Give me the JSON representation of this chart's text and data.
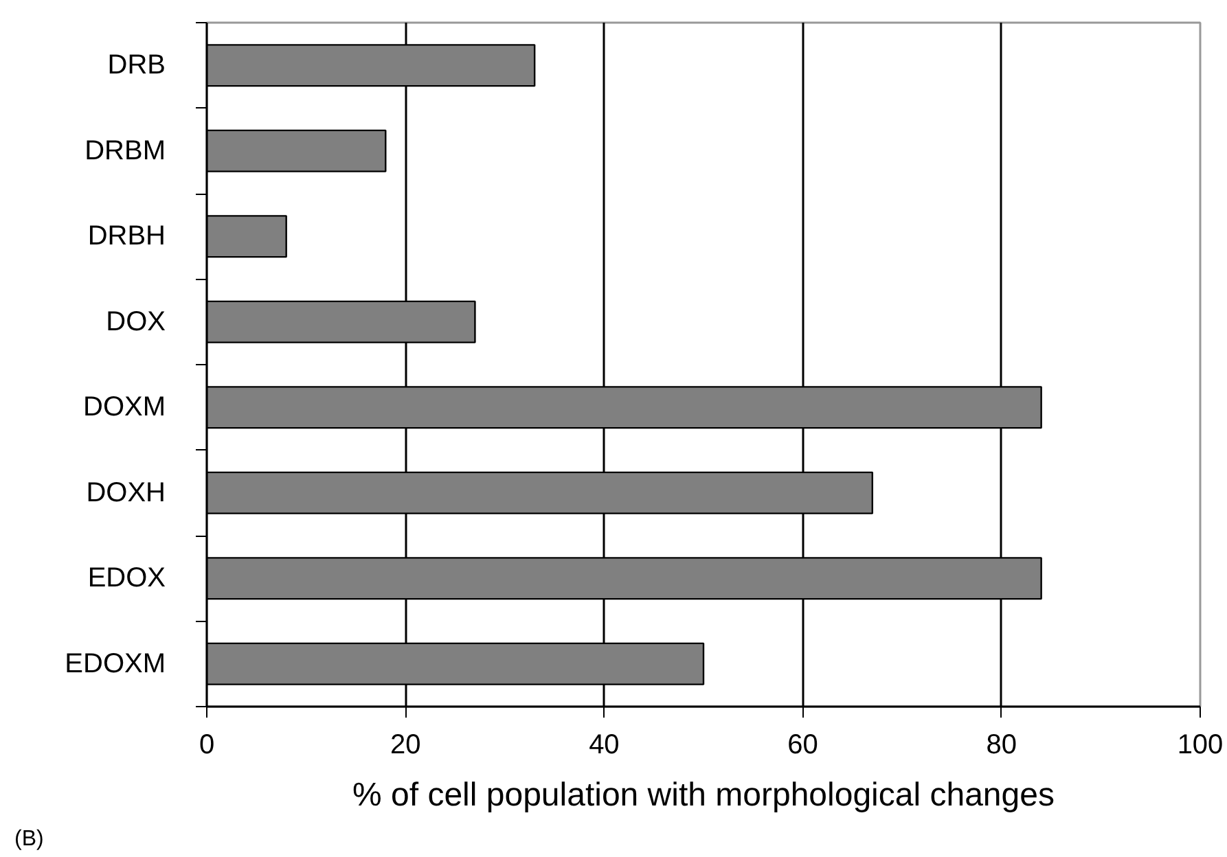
{
  "chart_data": {
    "type": "bar",
    "orientation": "horizontal",
    "xlabel": "% of cell population with morphological changes",
    "categories": [
      "DRB",
      "DRBM",
      "DRBH",
      "DOX",
      "DOXM",
      "DOXH",
      "EDOX",
      "EDOXM"
    ],
    "values": [
      33,
      18,
      8,
      27,
      84,
      67,
      84,
      50
    ],
    "color": "#808080",
    "xlim": [
      0,
      100
    ],
    "xticks": [
      0,
      20,
      40,
      60,
      80,
      100
    ],
    "grid": "x",
    "annotations": [
      "(B)"
    ]
  }
}
